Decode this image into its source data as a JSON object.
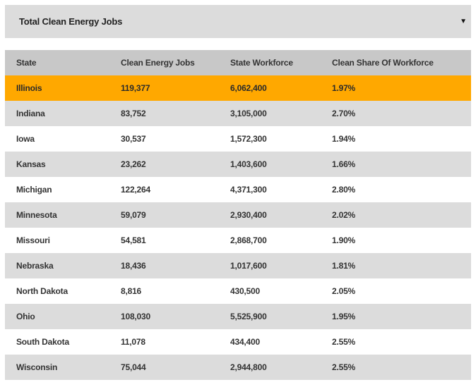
{
  "dropdown": {
    "selected": "Total Clean Energy Jobs",
    "caret_icon": "triangle-down-icon"
  },
  "table": {
    "headers": [
      "State",
      "Clean Energy Jobs",
      "State Workforce",
      "Clean Share Of Workforce"
    ],
    "highlight_color": "#ffa800",
    "rows": [
      {
        "state": "Illinois",
        "jobs": "119,377",
        "workforce": "6,062,400",
        "share": "1.97%"
      },
      {
        "state": "Indiana",
        "jobs": "83,752",
        "workforce": "3,105,000",
        "share": "2.70%"
      },
      {
        "state": "Iowa",
        "jobs": "30,537",
        "workforce": "1,572,300",
        "share": "1.94%"
      },
      {
        "state": "Kansas",
        "jobs": "23,262",
        "workforce": "1,403,600",
        "share": "1.66%"
      },
      {
        "state": "Michigan",
        "jobs": "122,264",
        "workforce": "4,371,300",
        "share": "2.80%"
      },
      {
        "state": "Minnesota",
        "jobs": "59,079",
        "workforce": "2,930,400",
        "share": "2.02%"
      },
      {
        "state": "Missouri",
        "jobs": "54,581",
        "workforce": "2,868,700",
        "share": "1.90%"
      },
      {
        "state": "Nebraska",
        "jobs": "18,436",
        "workforce": "1,017,600",
        "share": "1.81%"
      },
      {
        "state": "North Dakota",
        "jobs": "8,816",
        "workforce": "430,500",
        "share": "2.05%"
      },
      {
        "state": "Ohio",
        "jobs": "108,030",
        "workforce": "5,525,900",
        "share": "1.95%"
      },
      {
        "state": "South Dakota",
        "jobs": "11,078",
        "workforce": "434,400",
        "share": "2.55%"
      },
      {
        "state": "Wisconsin",
        "jobs": "75,044",
        "workforce": "2,944,800",
        "share": "2.55%"
      }
    ]
  }
}
